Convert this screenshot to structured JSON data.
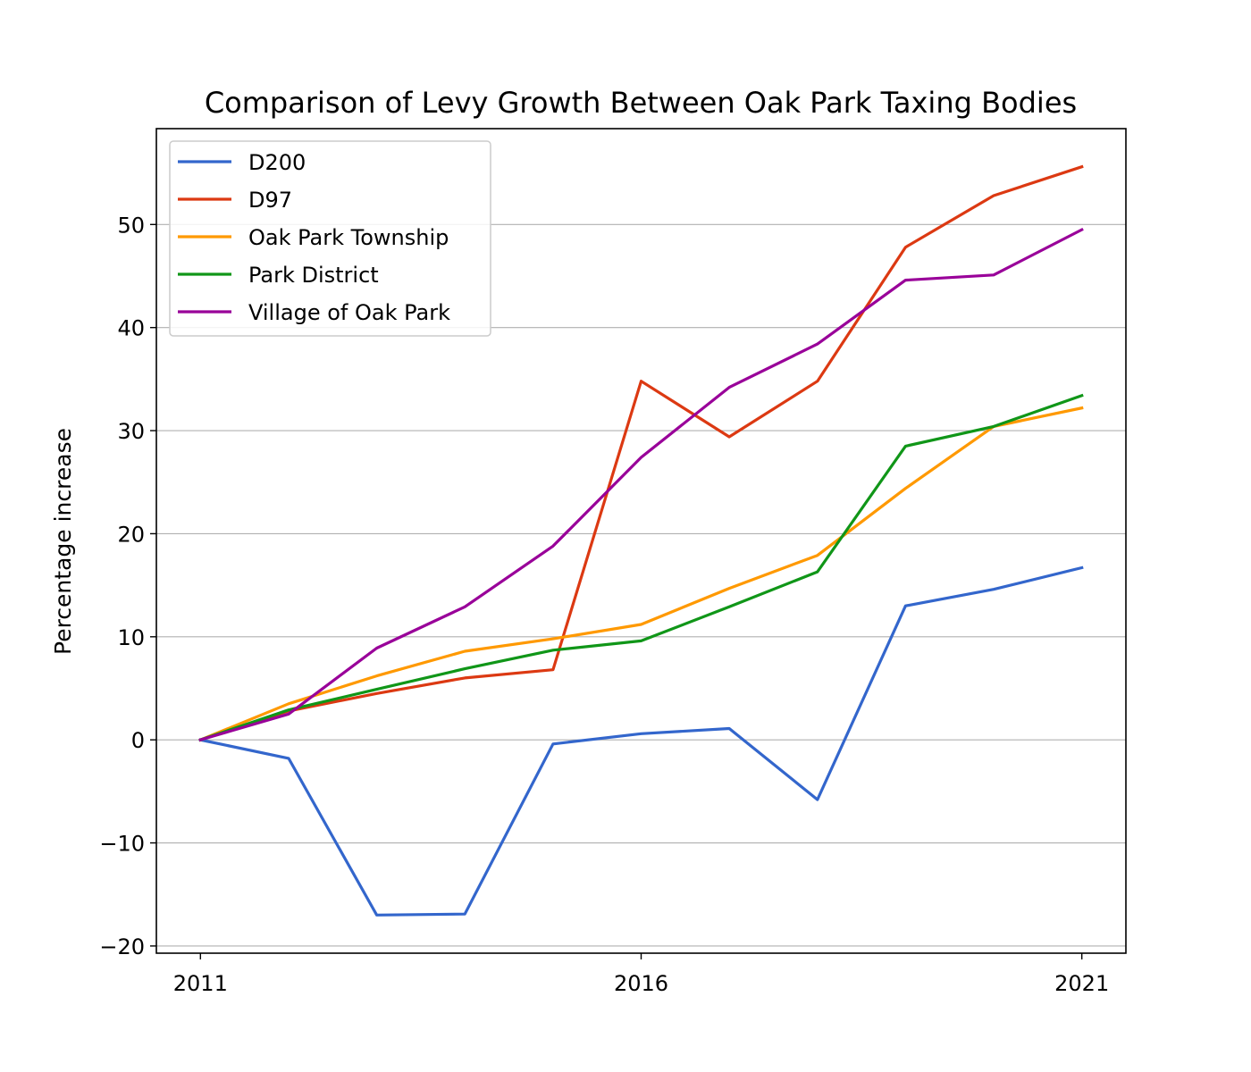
{
  "chart_data": {
    "type": "line",
    "title": "Comparison of Levy Growth Between Oak Park Taxing Bodies",
    "xlabel": "",
    "ylabel": "Percentage increase",
    "x": [
      2011,
      2012,
      2013,
      2014,
      2015,
      2016,
      2017,
      2018,
      2019,
      2020,
      2021
    ],
    "xlim": [
      2010.5,
      2021.5
    ],
    "ylim": [
      -20.7,
      59.3
    ],
    "xticks": [
      2011,
      2016,
      2021
    ],
    "xtick_labels": [
      "2011",
      "2016",
      "2021"
    ],
    "yticks": [
      -20,
      -10,
      0,
      10,
      20,
      30,
      40,
      50
    ],
    "ytick_labels": [
      "−20",
      "−10",
      "0",
      "10",
      "20",
      "30",
      "40",
      "50"
    ],
    "grid": "horizontal",
    "legend_position": "top-left",
    "series": [
      {
        "name": "D200",
        "color": "#3366cc",
        "values": [
          0,
          -1.8,
          -17.0,
          -16.9,
          -0.4,
          0.6,
          1.1,
          -5.8,
          13.0,
          14.6,
          16.7
        ]
      },
      {
        "name": "D97",
        "color": "#dc3912",
        "values": [
          0,
          2.8,
          4.5,
          6.0,
          6.8,
          34.8,
          29.4,
          34.8,
          47.8,
          52.8,
          55.6
        ]
      },
      {
        "name": "Oak Park Township",
        "color": "#ff9900",
        "values": [
          0,
          3.5,
          6.2,
          8.6,
          9.8,
          11.2,
          14.7,
          17.9,
          24.4,
          30.4,
          32.2
        ]
      },
      {
        "name": "Park District",
        "color": "#109618",
        "values": [
          0,
          2.9,
          4.9,
          6.9,
          8.7,
          9.6,
          12.9,
          16.3,
          28.5,
          30.4,
          33.4
        ]
      },
      {
        "name": "Village of Oak Park",
        "color": "#990099",
        "values": [
          0,
          2.5,
          8.9,
          12.9,
          18.8,
          27.4,
          34.2,
          38.4,
          44.6,
          45.1,
          49.5
        ]
      }
    ]
  }
}
